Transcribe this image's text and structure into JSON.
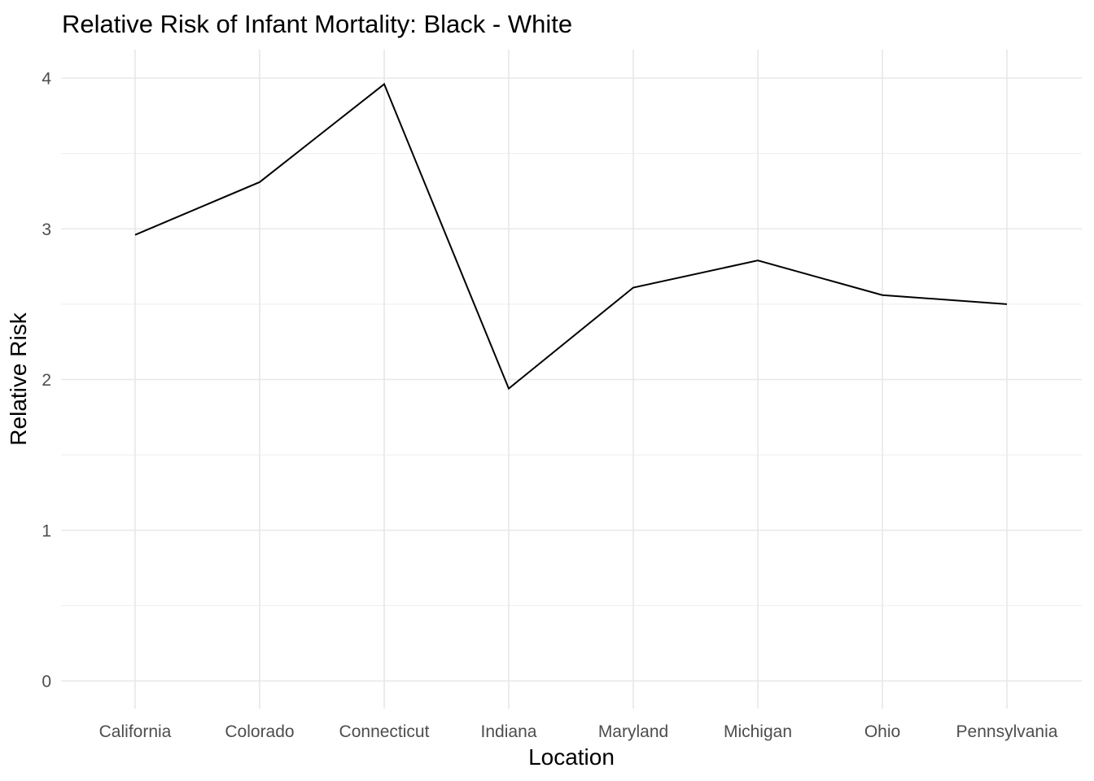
{
  "chart_data": {
    "type": "line",
    "title": "Relative Risk of Infant Mortality: Black - White",
    "xlabel": "Location",
    "ylabel": "Relative Risk",
    "categories": [
      "California",
      "Colorado",
      "Connecticut",
      "Indiana",
      "Maryland",
      "Michigan",
      "Ohio",
      "Pennsylvania"
    ],
    "series": [
      {
        "name": "Relative Risk",
        "values": [
          2.96,
          3.31,
          3.96,
          1.94,
          2.61,
          2.79,
          2.56,
          2.5
        ]
      }
    ],
    "ylim": [
      0,
      4
    ],
    "yticks": [
      0,
      1,
      2,
      3,
      4
    ],
    "ytick_labels": [
      "0",
      "1",
      "2",
      "3",
      "4"
    ],
    "yticks_minor": [
      0.5,
      1.5,
      2.5,
      3.5
    ],
    "grid": "on",
    "legend": "none",
    "colors": {
      "line": "#000000",
      "grid_major": "#e8e8e8",
      "grid_minor": "#f1f1f1",
      "tick_label": "#4d4d4d",
      "title_text": "#000000",
      "background": "#ffffff"
    }
  }
}
